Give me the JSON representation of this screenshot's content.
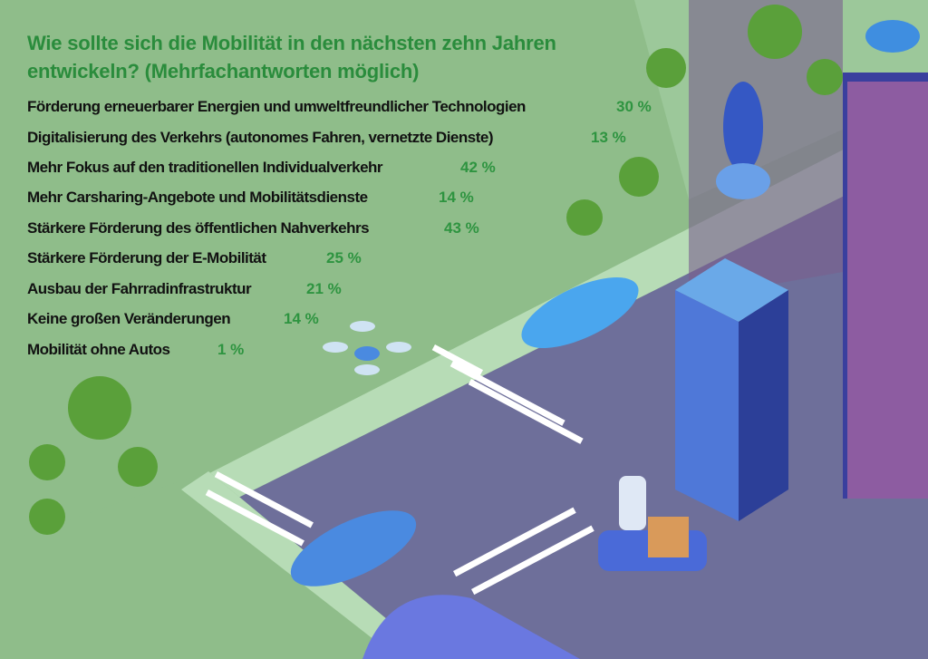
{
  "chart_data": {
    "type": "table",
    "title": "Wie sollte sich die Mobilität in den nächsten zehn Jahren entwickeln? (Mehrfachantworten möglich)",
    "categories": [
      "Förderung erneuerbarer Energien und umweltfreundlicher Technologien",
      "Digitalisierung des Verkehrs (autonomes Fahren, vernetzte Dienste)",
      "Mehr Fokus auf den traditionellen Individualverkehr",
      "Mehr Carsharing-Angebote und Mobilitätsdienste",
      "Stärkere Förderung des öffentlichen Nahverkehrs",
      "Stärkere Förderung der E-Mobilität",
      "Ausbau der Fahrradinfrastruktur",
      "Keine großen Veränderungen",
      "Mobilität ohne Autos"
    ],
    "values": [
      30,
      13,
      42,
      14,
      43,
      25,
      21,
      14,
      1
    ],
    "value_labels": [
      "30 %",
      "13 %",
      "42 %",
      "14 %",
      "43 %",
      "25 %",
      "21 %",
      "14 %",
      "1 %"
    ],
    "unit": "%"
  },
  "colors": {
    "background_green": "#8fbd8a",
    "title_green": "#2a8c3c",
    "value_green": "#2e9440",
    "road": "#6e6f9a"
  }
}
